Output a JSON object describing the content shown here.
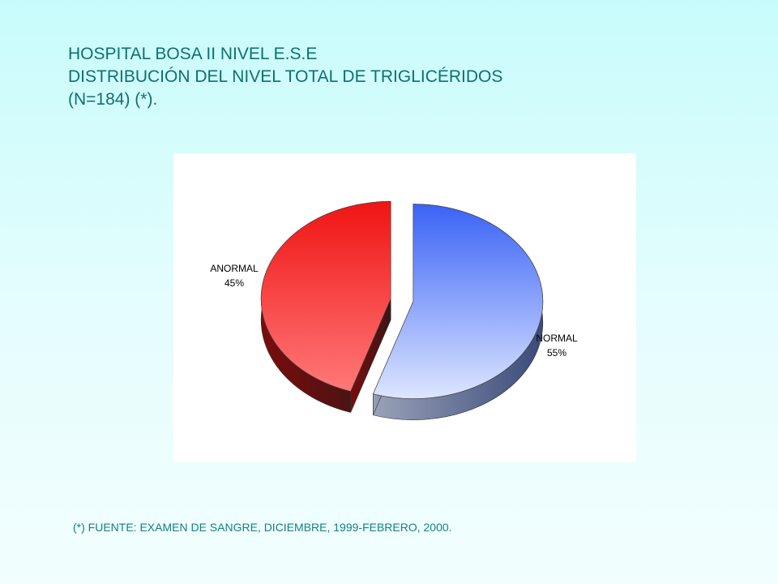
{
  "title": {
    "line1": "HOSPITAL BOSA II NIVEL E.S.E",
    "line2": "DISTRIBUCIÓN DEL NIVEL TOTAL DE TRIGLICÉRIDOS",
    "line3": "(N=184) (*)."
  },
  "chart_data": {
    "type": "pie",
    "labels": [
      "NORMAL",
      "ANORMAL"
    ],
    "values": [
      55,
      45
    ],
    "value_labels": [
      "55%",
      "45%"
    ],
    "colors": [
      "#4a6cf5",
      "#f02424"
    ],
    "style": "3d-exploded",
    "legend": "none"
  },
  "footnote": "(*) FUENTE: EXAMEN DE SANGRE, DICIEMBRE, 1999-FEBRERO,  2000."
}
